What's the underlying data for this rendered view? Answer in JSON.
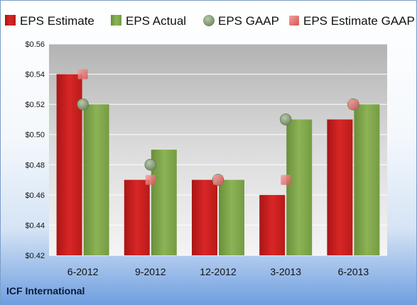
{
  "company_label": "ICF International",
  "chart_data": {
    "type": "bar",
    "categories": [
      "6-2012",
      "9-2012",
      "12-2012",
      "3-2013",
      "6-2013"
    ],
    "series": [
      {
        "name": "EPS Estimate",
        "kind": "bar",
        "color": "#cc1f1f",
        "values": [
          0.54,
          0.47,
          0.47,
          0.46,
          0.51
        ]
      },
      {
        "name": "EPS Actual",
        "kind": "bar",
        "color": "#7ea34a",
        "values": [
          0.52,
          0.49,
          0.47,
          0.51,
          0.52
        ]
      },
      {
        "name": "EPS GAAP",
        "kind": "circle-marker",
        "color": "#8fa77f",
        "values": [
          0.52,
          0.48,
          0.47,
          0.51,
          0.52
        ]
      },
      {
        "name": "EPS Estimate GAAP",
        "kind": "square-marker",
        "color": "#e87a7a",
        "values": [
          0.54,
          0.47,
          0.47,
          0.47,
          0.52
        ]
      }
    ],
    "ylim": [
      0.42,
      0.56
    ],
    "yticks": [
      "$0.42",
      "$0.44",
      "$0.46",
      "$0.48",
      "$0.50",
      "$0.52",
      "$0.54",
      "$0.56"
    ],
    "ytick_values": [
      0.42,
      0.44,
      0.46,
      0.48,
      0.5,
      0.52,
      0.54,
      0.56
    ],
    "grid": true,
    "legend_position": "top"
  }
}
